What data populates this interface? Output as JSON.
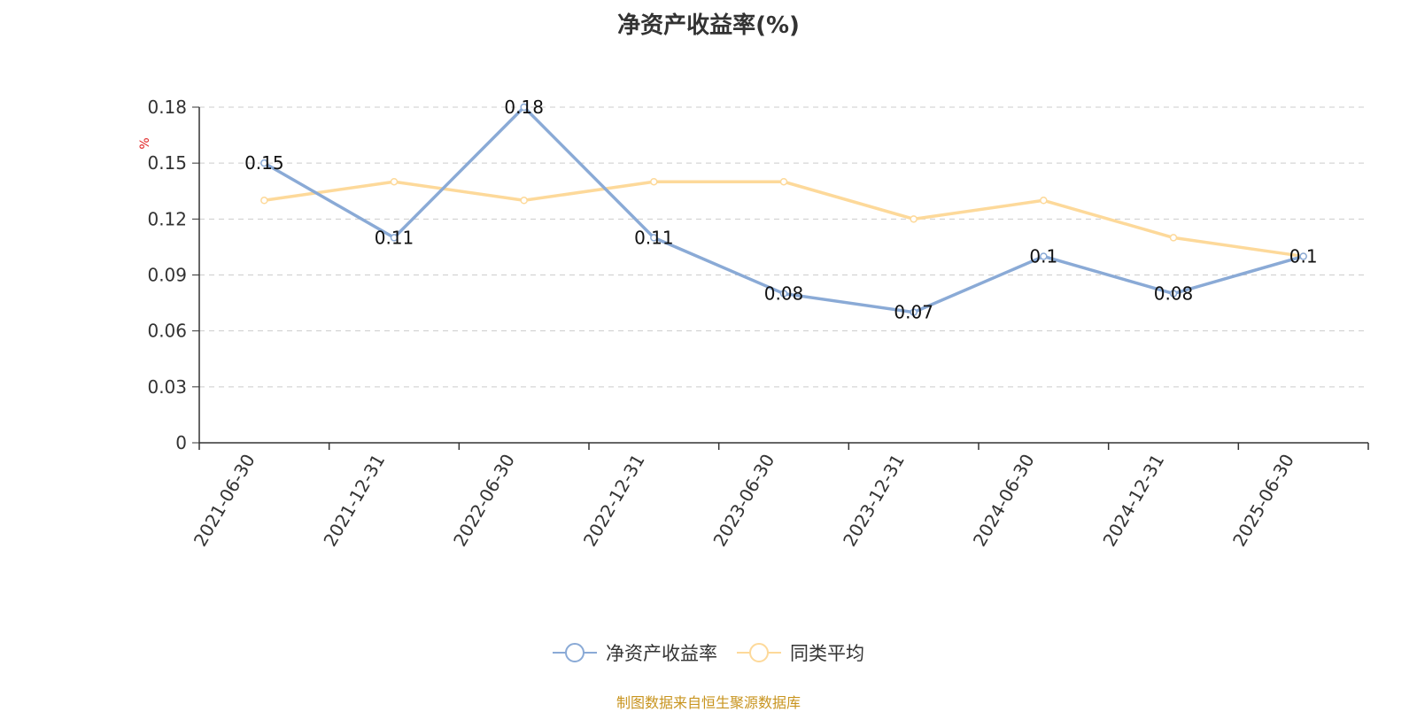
{
  "chart_data": {
    "type": "line",
    "title": "净资产收益率(%)",
    "ylabel": "%",
    "xlabel": "",
    "ylim": [
      0,
      0.18
    ],
    "yticks": [
      "0",
      "0.03",
      "0.06",
      "0.09",
      "0.12",
      "0.15",
      "0.18"
    ],
    "grid": true,
    "legend_position": "bottom-center",
    "categories": [
      "2021-06-30",
      "2021-12-31",
      "2022-06-30",
      "2022-12-31",
      "2023-06-30",
      "2023-12-31",
      "2024-06-30",
      "2024-12-31",
      "2025-06-30"
    ],
    "series": [
      {
        "name": "净资产收益率",
        "color": "#8aaad6",
        "values": [
          0.15,
          0.11,
          0.18,
          0.11,
          0.08,
          0.07,
          0.1,
          0.08,
          0.1
        ],
        "labels": [
          "0.15",
          "0.11",
          "0.18",
          "0.11",
          "0.08",
          "0.07",
          "0.1",
          "0.08",
          "0.1"
        ]
      },
      {
        "name": "同类平均",
        "color": "#fdd99a",
        "values": [
          0.13,
          0.14,
          0.13,
          0.14,
          0.14,
          0.12,
          0.13,
          0.11,
          0.1
        ]
      }
    ]
  },
  "source_text": "制图数据来自恒生聚源数据库"
}
